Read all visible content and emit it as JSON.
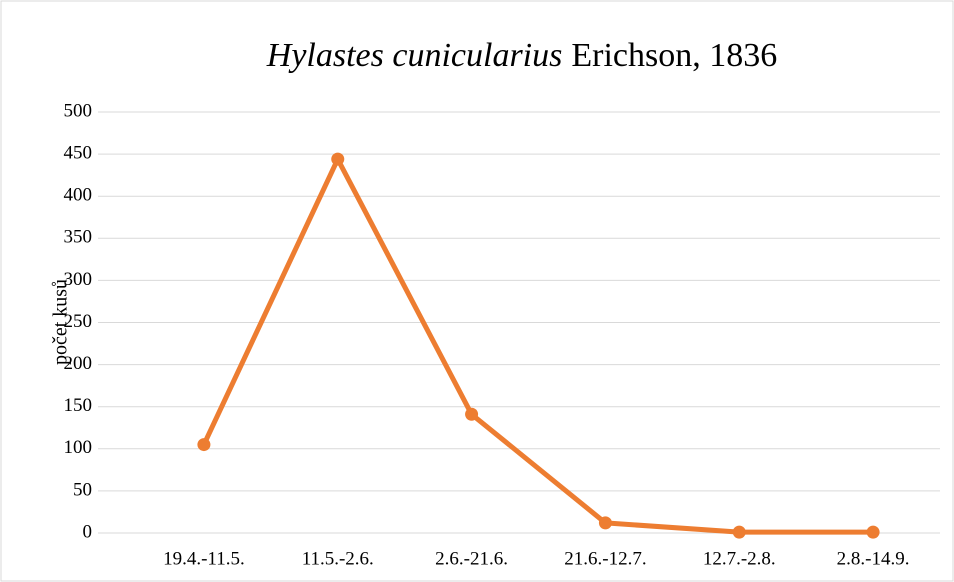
{
  "chart_data": {
    "type": "line",
    "title": {
      "species": "Hylastes cunicularius",
      "author": "Erichson, 1836"
    },
    "ylabel": "počet kusů",
    "categories": [
      "19.4.-11.5.",
      "11.5.-2.6.",
      "2.6.-21.6.",
      "21.6.-12.7.",
      "12.7.-2.8.",
      "2.8.-14.9."
    ],
    "series": [
      {
        "name": "Hylastes cunicularius",
        "color": "#ed7d31",
        "values": [
          105,
          444,
          141,
          12,
          1,
          1
        ]
      }
    ],
    "ylim": [
      0,
      500
    ],
    "yticks": [
      0,
      50,
      100,
      150,
      200,
      250,
      300,
      350,
      400,
      450,
      500
    ],
    "grid": true
  }
}
